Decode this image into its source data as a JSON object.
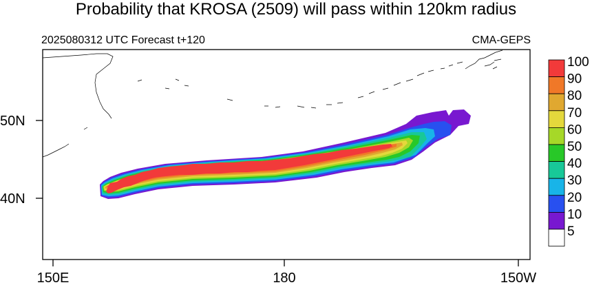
{
  "title": "Probability that KROSA (2509) will pass within 120km radius",
  "subtitle_left": "2025080312 UTC Forecast t+120",
  "subtitle_right": "CMA-GEPS",
  "lat_labels": [
    "50N",
    "40N"
  ],
  "lon_labels": [
    "150E",
    "180",
    "150W"
  ],
  "legend": {
    "levels": [
      "100",
      "90",
      "80",
      "70",
      "60",
      "50",
      "40",
      "30",
      "20",
      "10",
      "5"
    ],
    "colors": [
      "#f23a3a",
      "#f07828",
      "#e0a830",
      "#e4d83c",
      "#a6d828",
      "#28c828",
      "#18c898",
      "#18b4e8",
      "#2850f0",
      "#7818d0",
      "#ffffff"
    ]
  },
  "probability_bands": [
    {
      "level": 5,
      "color": "#7818d0"
    },
    {
      "level": 10,
      "color": "#2850f0"
    },
    {
      "level": 20,
      "color": "#18b4e8"
    },
    {
      "level": 30,
      "color": "#18c898"
    },
    {
      "level": 40,
      "color": "#28c828"
    },
    {
      "level": 50,
      "color": "#a6d828"
    },
    {
      "level": 60,
      "color": "#e4d83c"
    },
    {
      "level": 70,
      "color": "#e0a830"
    },
    {
      "level": 80,
      "color": "#f07828"
    },
    {
      "level": 90,
      "color": "#f23a3a"
    }
  ]
}
